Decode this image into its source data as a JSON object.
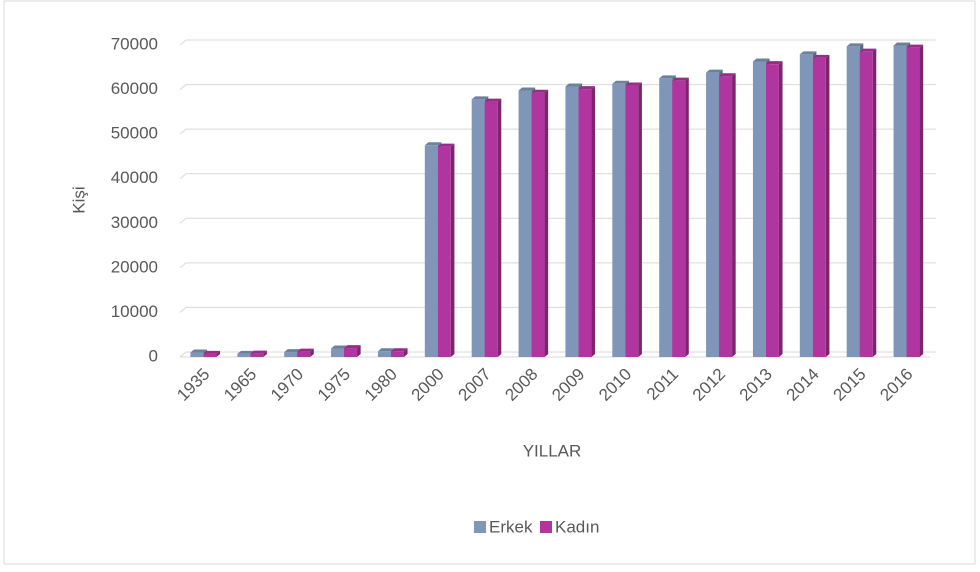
{
  "chart_data": {
    "type": "bar",
    "y_label": "Kişi",
    "x_label": "YILLAR",
    "categories": [
      "1935",
      "1965",
      "1970",
      "1975",
      "1980",
      "2000",
      "2007",
      "2008",
      "2009",
      "2010",
      "2011",
      "2012",
      "2013",
      "2014",
      "2015",
      "2016"
    ],
    "series": [
      {
        "name": "Erkek",
        "color": "#8096b8",
        "values": [
          1000,
          700,
          1100,
          1900,
          1300,
          47500,
          57800,
          59800,
          60700,
          61300,
          62500,
          63800,
          66300,
          67900,
          69700,
          69900
        ]
      },
      {
        "name": "Kadın",
        "color": "#b0359e",
        "values": [
          700,
          750,
          1200,
          2000,
          1300,
          47200,
          57300,
          59300,
          60100,
          60900,
          62000,
          63000,
          65700,
          67100,
          68500,
          69400
        ]
      }
    ],
    "ylim": [
      0,
      70000
    ],
    "yticks": [
      0,
      10000,
      20000,
      30000,
      40000,
      50000,
      60000,
      70000
    ],
    "grid": true,
    "legend": "bottom"
  }
}
